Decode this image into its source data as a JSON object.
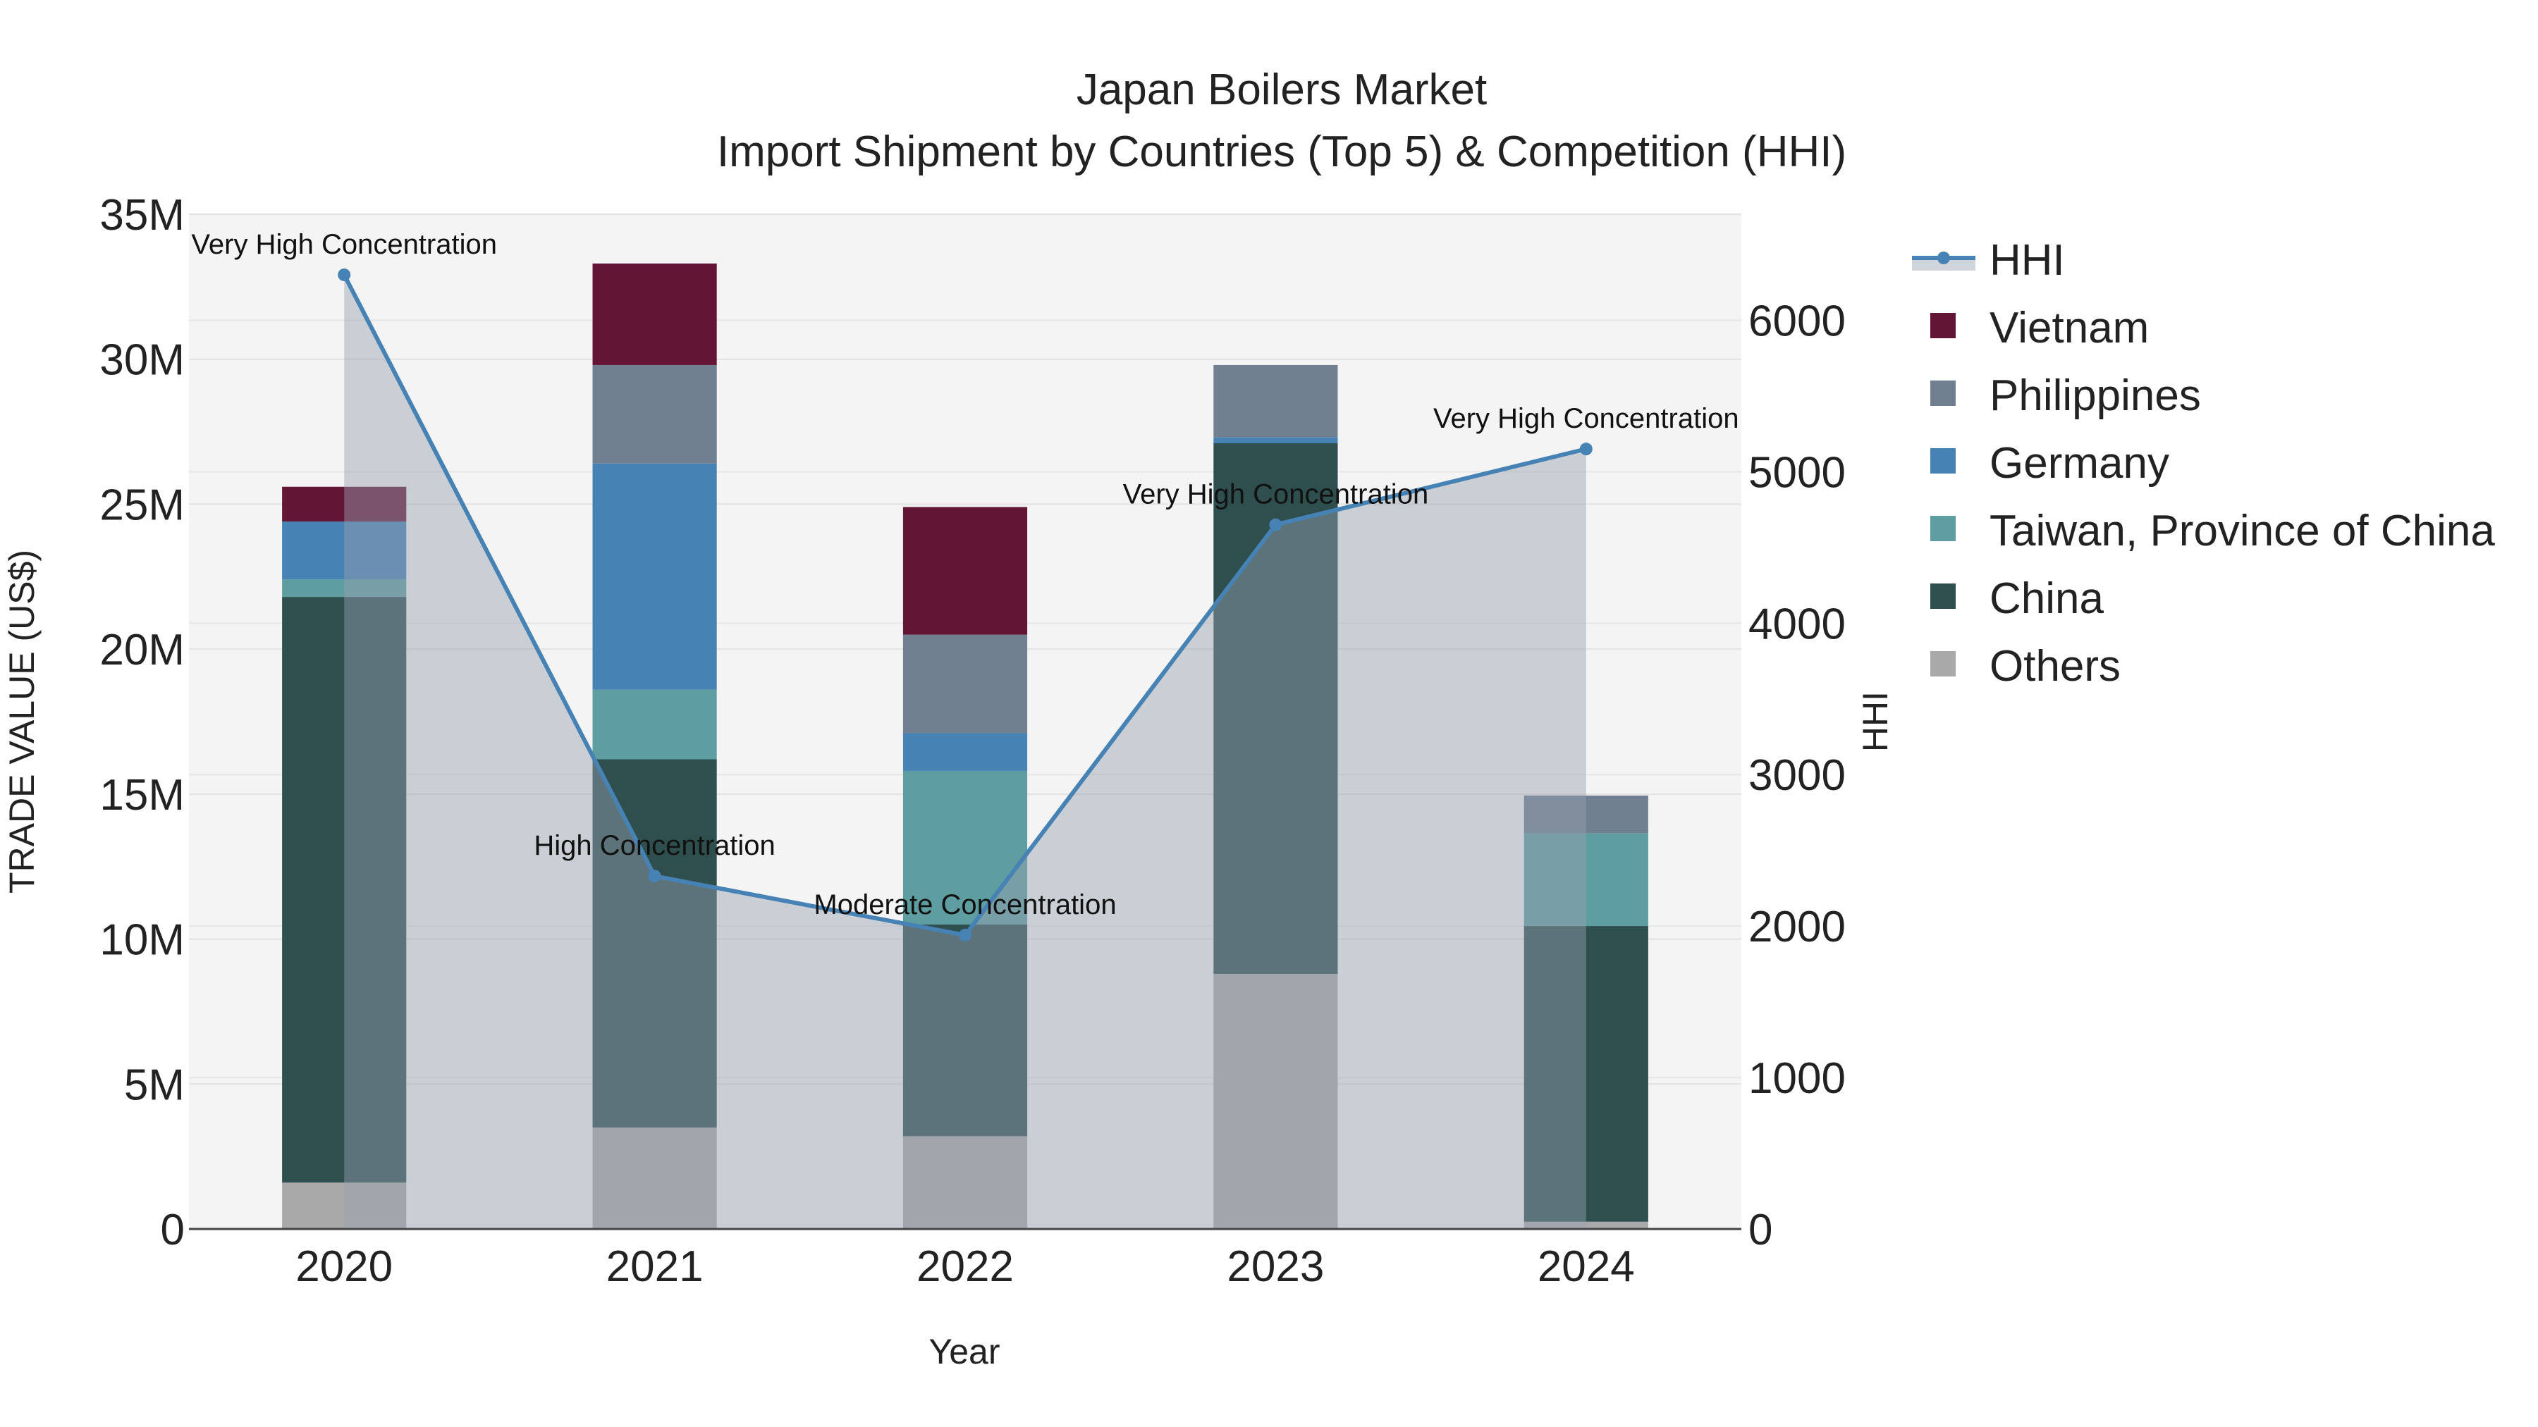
{
  "chart_data": {
    "type": "bar",
    "title": "Japan Boilers Market",
    "subtitle": "Import Shipment by Countries (Top 5) & Competition (HHI)",
    "xlabel": "Year",
    "ylabel": "TRADE VALUE (US$)",
    "y2label": "HHI",
    "categories": [
      "2020",
      "2021",
      "2022",
      "2023",
      "2024"
    ],
    "ylim": [
      0,
      35000000
    ],
    "y2lim": [
      0,
      6700
    ],
    "yticks": [
      {
        "value": 0,
        "label": "0"
      },
      {
        "value": 5000000,
        "label": "5M"
      },
      {
        "value": 10000000,
        "label": "10M"
      },
      {
        "value": 15000000,
        "label": "15M"
      },
      {
        "value": 20000000,
        "label": "20M"
      },
      {
        "value": 25000000,
        "label": "25M"
      },
      {
        "value": 30000000,
        "label": "30M"
      },
      {
        "value": 35000000,
        "label": "35M"
      }
    ],
    "y2ticks": [
      {
        "value": 0,
        "label": "0"
      },
      {
        "value": 1000,
        "label": "1000"
      },
      {
        "value": 2000,
        "label": "2000"
      },
      {
        "value": 3000,
        "label": "3000"
      },
      {
        "value": 4000,
        "label": "4000"
      },
      {
        "value": 5000,
        "label": "5000"
      },
      {
        "value": 6000,
        "label": "6000"
      }
    ],
    "series": [
      {
        "name": "Others",
        "color": "#a9a9a9",
        "values": [
          1600000,
          3500000,
          3200000,
          8800000,
          250000
        ]
      },
      {
        "name": "China",
        "color": "#2f4f4f",
        "values": [
          20200000,
          12700000,
          7300000,
          18300000,
          10200000
        ]
      },
      {
        "name": "Taiwan, Province of China",
        "color": "#5f9ea0",
        "values": [
          600000,
          2400000,
          5300000,
          0,
          3200000
        ]
      },
      {
        "name": "Germany",
        "color": "#4682b4",
        "values": [
          2000000,
          7800000,
          1300000,
          200000,
          0
        ]
      },
      {
        "name": "Philippines",
        "color": "#708090",
        "values": [
          0,
          3400000,
          3400000,
          2500000,
          1300000
        ]
      },
      {
        "name": "Vietnam",
        "color": "#631535",
        "values": [
          1200000,
          3500000,
          4400000,
          0,
          0
        ]
      }
    ],
    "hhi": {
      "name": "HHI",
      "color": "#4682b4",
      "values": [
        6300,
        2330,
        1940,
        4650,
        5150
      ],
      "labels": [
        "Very High Concentration",
        "High Concentration",
        "Moderate Concentration",
        "Very High Concentration",
        "Very High Concentration"
      ]
    },
    "legend": {
      "position": "right",
      "items": [
        "HHI",
        "Vietnam",
        "Philippines",
        "Germany",
        "Taiwan, Province of China",
        "China",
        "Others"
      ]
    },
    "grid": true
  }
}
